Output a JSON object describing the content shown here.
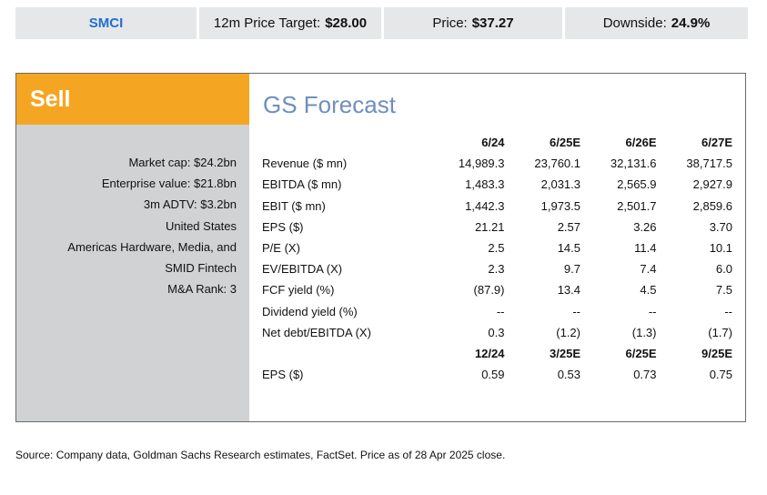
{
  "header": {
    "ticker": "SMCI",
    "target_label": "12m Price Target:",
    "target_value": "$28.00",
    "price_label": "Price:",
    "price_value": "$37.27",
    "downside_label": "Downside:",
    "downside_value": "24.9%"
  },
  "rating": "Sell",
  "info": [
    "Market cap: $24.2bn",
    "Enterprise value: $21.8bn",
    "3m ADTV: $3.2bn",
    "United States",
    "Americas Hardware, Media, and",
    "SMID Fintech",
    "M&A Rank: 3"
  ],
  "forecast": {
    "title": "GS Forecast",
    "annual_headers": [
      "6/24",
      "6/25E",
      "6/26E",
      "6/27E"
    ],
    "rows": [
      {
        "label": "Revenue ($ mn)",
        "values": [
          "14,989.3",
          "23,760.1",
          "32,131.6",
          "38,717.5"
        ]
      },
      {
        "label": "EBITDA ($ mn)",
        "values": [
          "1,483.3",
          "2,031.3",
          "2,565.9",
          "2,927.9"
        ]
      },
      {
        "label": "EBIT ($ mn)",
        "values": [
          "1,442.3",
          "1,973.5",
          "2,501.7",
          "2,859.6"
        ]
      },
      {
        "label": "EPS ($)",
        "values": [
          "21.21",
          "2.57",
          "3.26",
          "3.70"
        ]
      },
      {
        "label": "P/E (X)",
        "values": [
          "2.5",
          "14.5",
          "11.4",
          "10.1"
        ]
      },
      {
        "label": "EV/EBITDA (X)",
        "values": [
          "2.3",
          "9.7",
          "7.4",
          "6.0"
        ]
      },
      {
        "label": "FCF yield (%)",
        "values": [
          "(87.9)",
          "13.4",
          "4.5",
          "7.5"
        ]
      },
      {
        "label": "Dividend yield (%)",
        "values": [
          "--",
          "--",
          "--",
          "--"
        ]
      },
      {
        "label": "Net debt/EBITDA (X)",
        "values": [
          "0.3",
          "(1.2)",
          "(1.3)",
          "(1.7)"
        ]
      }
    ],
    "quarterly_headers": [
      "12/24",
      "3/25E",
      "6/25E",
      "9/25E"
    ],
    "quarterly_rows": [
      {
        "label": "EPS ($)",
        "values": [
          "0.59",
          "0.53",
          "0.73",
          "0.75"
        ]
      }
    ]
  },
  "source": "Source: Company data, Goldman Sachs Research estimates, FactSet. Price as of 28 Apr 2025 close."
}
